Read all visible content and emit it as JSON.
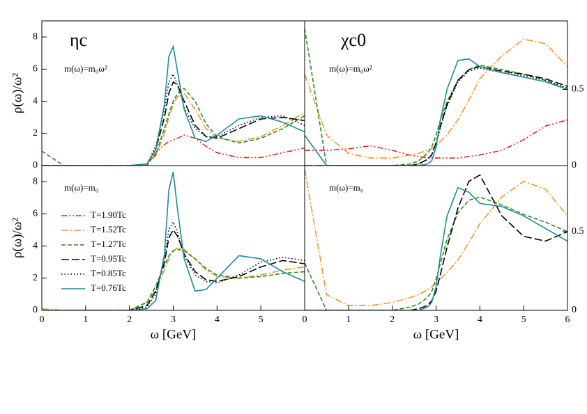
{
  "chart_data": [
    {
      "type": "line",
      "label": "ηc",
      "note": "m(ω)=m₀ω²",
      "ylabel": "ρ(ω)/ω²",
      "x": [
        0,
        0.5,
        1,
        1.5,
        2,
        2.4,
        2.6,
        2.8,
        2.9,
        3,
        3.1,
        3.25,
        3.5,
        3.75,
        4,
        4.5,
        5,
        5.5,
        6
      ],
      "xlim": [
        0,
        6
      ],
      "ylim": [
        0,
        9
      ],
      "yticks": [
        0,
        2,
        4,
        6,
        8
      ],
      "series": [
        {
          "name": "T=1.90Tc",
          "color": "#e3261c",
          "dash": "dashdotdot",
          "values": [
            0,
            0,
            0,
            0,
            0,
            0,
            0.8,
            1.3,
            1.5,
            1.6,
            1.7,
            1.9,
            1.7,
            1.2,
            0.8,
            0.5,
            0.5,
            0.8,
            1.1
          ]
        },
        {
          "name": "T=1.52Tc",
          "color": "#f0962a",
          "dash": "dashdot",
          "values": [
            0,
            0,
            0,
            0,
            0,
            0.1,
            0.6,
            2,
            3,
            3.8,
            4.3,
            4.5,
            3.5,
            2.3,
            1.7,
            1.5,
            1.8,
            2.5,
            3.3
          ]
        },
        {
          "name": "T=1.27Tc",
          "color": "#2b8a1c",
          "dash": "dash",
          "values": [
            0.9,
            0,
            0,
            0,
            0,
            0.1,
            0.7,
            2.3,
            3.2,
            4,
            4.5,
            4.8,
            4,
            2.6,
            1.8,
            1.4,
            1.7,
            2.3,
            3.1
          ]
        },
        {
          "name": "T=0.95Tc",
          "color": "#000000",
          "dash": "longdash",
          "values": [
            0,
            0,
            0,
            0,
            0,
            0.1,
            1,
            3,
            4.5,
            5.2,
            5,
            4,
            2.5,
            1.8,
            1.7,
            2.3,
            2.9,
            3,
            2.8
          ]
        },
        {
          "name": "T=0.85Tc",
          "color": "#000000",
          "dash": "dot",
          "values": [
            0,
            0,
            0,
            0,
            0,
            0.1,
            1.2,
            3.5,
            5.2,
            5.7,
            5,
            3.6,
            2.3,
            1.8,
            1.8,
            2.5,
            3,
            3.1,
            2.5
          ]
        },
        {
          "name": "T=0.76Tc",
          "color": "#1f8a9c",
          "dash": "solid",
          "values": [
            0,
            0,
            0,
            0,
            0,
            0.1,
            1,
            3.8,
            6.8,
            7.4,
            5.8,
            3.5,
            1.7,
            1.5,
            1.9,
            2.9,
            3.1,
            2.7,
            2.1
          ]
        }
      ]
    },
    {
      "type": "line",
      "label": "χc0",
      "note": "m(ω)=m₀ω²",
      "x": [
        0,
        0.5,
        1,
        1.5,
        2,
        2.4,
        2.6,
        2.8,
        2.9,
        3,
        3.1,
        3.25,
        3.5,
        3.75,
        4,
        4.5,
        5,
        5.5,
        6
      ],
      "xlim": [
        0,
        6
      ],
      "ylim": [
        0,
        0.95
      ],
      "yticks": [
        0,
        0.5
      ],
      "series": [
        {
          "color": "#e3261c",
          "dash": "dashdotdot",
          "values": [
            0.1,
            0.1,
            0.11,
            0.13,
            0.1,
            0.07,
            0.06,
            0.05,
            0.05,
            0.05,
            0.05,
            0.05,
            0.05,
            0.06,
            0.07,
            0.1,
            0.17,
            0.26,
            0.3
          ]
        },
        {
          "color": "#f0962a",
          "dash": "dashdot",
          "values": [
            0.6,
            0.2,
            0.08,
            0.05,
            0.05,
            0.07,
            0.08,
            0.1,
            0.11,
            0.13,
            0.16,
            0.2,
            0.3,
            0.43,
            0.57,
            0.72,
            0.83,
            0.8,
            0.65
          ]
        },
        {
          "color": "#2b8a1c",
          "dash": "dash",
          "values": [
            0.9,
            0,
            0,
            0,
            0,
            0.01,
            0.03,
            0.08,
            0.12,
            0.2,
            0.3,
            0.42,
            0.56,
            0.63,
            0.66,
            0.63,
            0.6,
            0.56,
            0.5
          ]
        },
        {
          "color": "#000000",
          "dash": "longdash",
          "values": [
            0,
            0,
            0,
            0,
            0,
            0,
            0.01,
            0.04,
            0.07,
            0.15,
            0.26,
            0.4,
            0.56,
            0.63,
            0.65,
            0.62,
            0.6,
            0.57,
            0.52
          ]
        },
        {
          "color": "#000000",
          "dash": "dot",
          "values": [
            0,
            0,
            0,
            0,
            0,
            0,
            0.01,
            0.04,
            0.07,
            0.14,
            0.25,
            0.39,
            0.55,
            0.62,
            0.64,
            0.61,
            0.59,
            0.56,
            0.51
          ]
        },
        {
          "color": "#1f8a9c",
          "dash": "solid",
          "values": [
            0.2,
            0,
            0,
            0,
            0,
            0,
            0,
            0.01,
            0.03,
            0.12,
            0.3,
            0.5,
            0.69,
            0.7,
            0.65,
            0.61,
            0.58,
            0.55,
            0.5
          ]
        }
      ]
    },
    {
      "type": "line",
      "note": "m(ω)=m₀",
      "ylabel": "ρ(ω)/ω²",
      "xlabel": "ω [GeV]",
      "x": [
        0,
        0.5,
        1,
        1.5,
        2,
        2.4,
        2.6,
        2.8,
        2.9,
        3,
        3.1,
        3.25,
        3.5,
        3.75,
        4,
        4.5,
        5,
        5.5,
        6
      ],
      "xlim": [
        0,
        6
      ],
      "xticks": [
        0,
        1,
        2,
        3,
        4,
        5
      ],
      "ylim": [
        0,
        9
      ],
      "yticks": [
        0,
        2,
        4,
        6,
        8
      ],
      "series": [
        {
          "color": "#f0962a",
          "dash": "dashdot",
          "values": [
            0.1,
            0,
            0,
            0,
            0,
            0.5,
            1.3,
            2.5,
            3.2,
            3.7,
            3.9,
            3.8,
            3.2,
            2.5,
            2.1,
            2,
            2.2,
            2.5,
            2.7
          ]
        },
        {
          "color": "#2b8a1c",
          "dash": "dash",
          "values": [
            0,
            0,
            0,
            0,
            0,
            0.5,
            1.5,
            2.8,
            3.4,
            3.7,
            3.8,
            3.7,
            3.2,
            2.6,
            2.2,
            2,
            2.1,
            2.3,
            2.4
          ]
        },
        {
          "color": "#000000",
          "dash": "longdash",
          "values": [
            0,
            0,
            0,
            0,
            0,
            0.3,
            1.2,
            3,
            4.5,
            5,
            4.6,
            3.5,
            2.4,
            1.9,
            1.8,
            2.1,
            2.7,
            3.1,
            2.9
          ]
        },
        {
          "color": "#000000",
          "dash": "dot",
          "values": [
            0,
            0,
            0,
            0,
            0,
            0.2,
            1,
            3.3,
            5,
            5.5,
            4.8,
            3.4,
            2.2,
            1.8,
            1.7,
            2.2,
            3,
            3.3,
            3.1
          ]
        },
        {
          "color": "#1f8a9c",
          "dash": "solid",
          "values": [
            0,
            0,
            0,
            0,
            0,
            0.1,
            0.6,
            3.5,
            7.5,
            8.6,
            6.2,
            3.2,
            1.2,
            1.3,
            2,
            3.4,
            3.2,
            2.4,
            1.8
          ]
        }
      ]
    },
    {
      "type": "line",
      "note": "m(ω)=m₀",
      "xlabel": "ω [GeV]",
      "x": [
        0,
        0.5,
        1,
        1.5,
        2,
        2.4,
        2.6,
        2.8,
        2.9,
        3,
        3.1,
        3.25,
        3.5,
        3.75,
        4,
        4.5,
        5,
        5.5,
        6
      ],
      "xlim": [
        0,
        6
      ],
      "xticks": [
        0,
        1,
        2,
        3,
        4,
        5,
        6
      ],
      "ylim": [
        0,
        0.92
      ],
      "yticks": [
        0,
        0.5
      ],
      "series": [
        {
          "color": "#f0962a",
          "dash": "dashdot",
          "values": [
            0.9,
            0.1,
            0.03,
            0.03,
            0.05,
            0.08,
            0.1,
            0.13,
            0.15,
            0.17,
            0.2,
            0.24,
            0.32,
            0.43,
            0.55,
            0.72,
            0.82,
            0.77,
            0.6
          ]
        },
        {
          "color": "#2b8a1c",
          "dash": "dash",
          "values": [
            0.3,
            0,
            0,
            0,
            0,
            0.02,
            0.04,
            0.08,
            0.12,
            0.2,
            0.3,
            0.45,
            0.62,
            0.7,
            0.72,
            0.67,
            0.61,
            0.56,
            0.5
          ]
        },
        {
          "color": "#000000",
          "dash": "longdash",
          "values": [
            0,
            0,
            0,
            0,
            0,
            0,
            0.01,
            0.03,
            0.06,
            0.12,
            0.23,
            0.4,
            0.65,
            0.82,
            0.86,
            0.6,
            0.47,
            0.44,
            0.5
          ]
        },
        {
          "color": "#1f8a9c",
          "dash": "solid",
          "values": [
            0,
            0,
            0,
            0,
            0,
            0,
            0,
            0.02,
            0.05,
            0.15,
            0.35,
            0.6,
            0.78,
            0.75,
            0.68,
            0.66,
            0.6,
            0.52,
            0.44
          ]
        }
      ]
    }
  ]
}
